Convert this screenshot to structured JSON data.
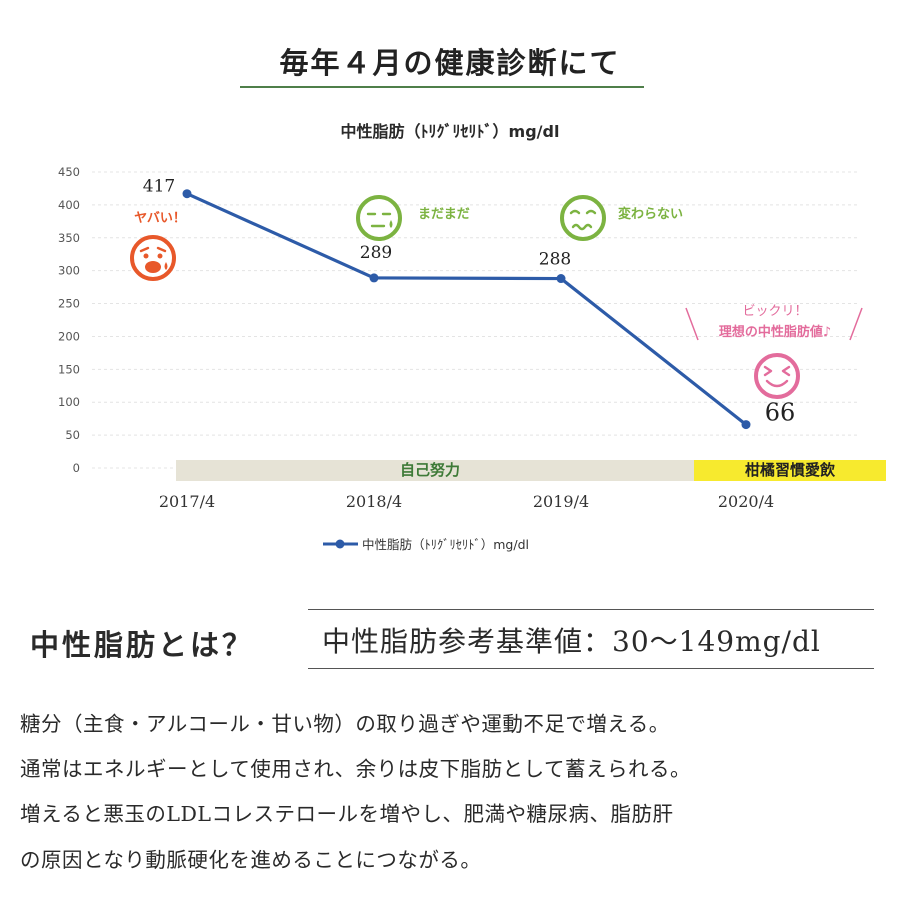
{
  "header": {
    "title": "毎年４月の健康診断にて"
  },
  "chart_data": {
    "type": "line",
    "title": "中性脂肪（ﾄﾘｸﾞﾘｾﾘﾄﾞ）mg/dl",
    "categories": [
      "2017/4",
      "2018/4",
      "2019/4",
      "2020/4"
    ],
    "series": [
      {
        "name": "中性脂肪（ﾄﾘｸﾞﾘｾﾘﾄﾞ）mg/dl",
        "values": [
          417,
          289,
          288,
          66
        ],
        "color": "#2d5ba8"
      }
    ],
    "y_ticks": [
      0,
      50,
      100,
      150,
      200,
      250,
      300,
      350,
      400,
      450
    ],
    "ylim": [
      0,
      450
    ],
    "legend": "bottom",
    "periods": [
      {
        "label": "自己努力",
        "from": "2017/4",
        "to": "2019/4",
        "color": "#e6e3d6"
      },
      {
        "label": "柑橘習慣愛飲",
        "from": "2020/4",
        "to": "2020/4",
        "color": "#f7ea2e"
      }
    ],
    "annotations": [
      {
        "label": "ヤバい！",
        "category": "2017/4",
        "face": "shocked",
        "color": "#e8582a"
      },
      {
        "label": "まだまだ",
        "category": "2018/4",
        "face": "meh",
        "color": "#7cb341"
      },
      {
        "label": "変わらない",
        "category": "2019/4",
        "face": "worried",
        "color": "#7cb341"
      },
      {
        "label_lines": [
          "ビックリ！",
          "理想の中性脂肪値♪"
        ],
        "category": "2020/4",
        "face": "happy",
        "color": "#e36c9c"
      }
    ]
  },
  "definition": {
    "title": "中性脂肪とは？",
    "reference": "中性脂肪参考基準値：30〜149mg/dl",
    "lines": [
      "糖分（主食・アルコール・甘い物）の取り過ぎや運動不足で増える。",
      "通常はエネルギーとして使用され、余りは皮下脂肪として蓄えられる。",
      "増えると悪玉のLDLコレステロールを増やし、肥満や糖尿病、脂肪肝",
      "の原因となり動脈硬化を進めることにつながる。"
    ]
  }
}
